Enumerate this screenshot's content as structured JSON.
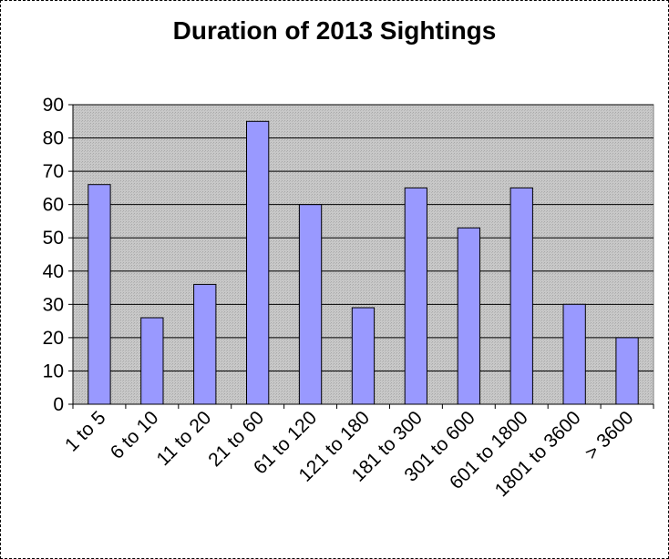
{
  "chart_data": {
    "type": "bar",
    "title": "Duration of 2013 Sightings",
    "xlabel": "",
    "ylabel": "",
    "categories": [
      "1 to 5",
      "6 to 10",
      "11 to 20",
      "21 to 60",
      "61 to 120",
      "121 to 180",
      "181 to 300",
      "301 to 600",
      "601 to 1800",
      "1801 to 3600",
      "> 3600"
    ],
    "values": [
      66,
      26,
      36,
      85,
      60,
      29,
      65,
      53,
      65,
      30,
      20
    ],
    "ylim": [
      0,
      90
    ],
    "yticks": [
      0,
      10,
      20,
      30,
      40,
      50,
      60,
      70,
      80,
      90
    ],
    "grid": true,
    "legend": "none",
    "colors": {
      "bar_fill": "#9999ff",
      "bar_stroke": "#000000",
      "plot_background": "#c0c0c0",
      "gridline": "#000000"
    }
  }
}
